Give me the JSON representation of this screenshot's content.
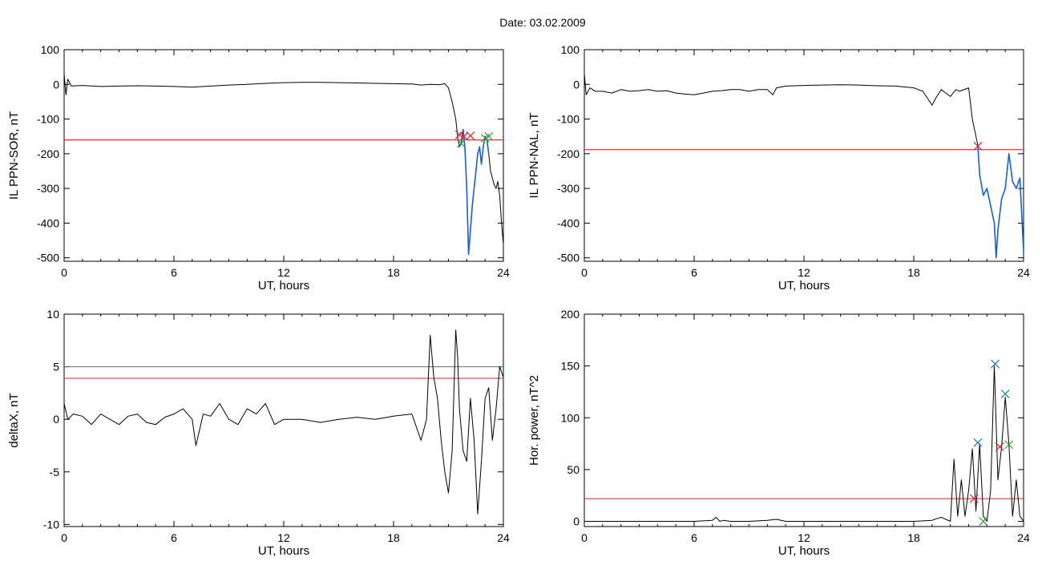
{
  "header": {
    "date_label": "Date:  03.02.2009"
  },
  "colors": {
    "trace": "#000000",
    "threshold": "#e8262b",
    "highlight": "#1a5fd6",
    "level2": "#1a8f8f",
    "marker_red": "#d62728",
    "marker_green": "#2ca02c",
    "marker_blue": "#1f77b4"
  },
  "chart_data": [
    {
      "id": "sor",
      "type": "line",
      "title": "",
      "xlabel": "UT, hours",
      "ylabel": "IL PPN-SOR, nT",
      "xlim": [
        0,
        24
      ],
      "ylim": [
        -510,
        100
      ],
      "xticks": [
        0,
        6,
        12,
        18,
        24
      ],
      "yticks": [
        100,
        0,
        -100,
        -200,
        -300,
        -400,
        -500
      ],
      "threshold": -160,
      "series": [
        {
          "role": "main",
          "x": [
            0,
            0.1,
            0.2,
            0.4,
            1,
            2,
            3,
            4,
            5,
            6,
            7,
            8,
            9,
            10,
            11,
            12,
            13,
            14,
            15,
            16,
            17,
            18,
            19,
            19.5,
            20,
            20.5,
            20.8,
            21,
            21.2,
            21.4,
            21.5,
            21.6,
            21.7,
            21.8,
            21.9,
            22,
            22.1,
            22.2,
            22.3,
            22.4,
            22.5,
            22.6,
            22.7,
            22.8,
            22.9,
            23,
            23.1,
            23.2,
            23.3,
            23.4,
            23.5,
            23.6,
            23.7,
            23.8,
            23.9,
            24
          ],
          "y": [
            30,
            -30,
            15,
            -5,
            -3,
            -6,
            -5,
            -4,
            -5,
            -6,
            -8,
            -5,
            -2,
            0,
            3,
            5,
            6,
            6,
            5,
            4,
            3,
            2,
            1,
            -2,
            0,
            -1,
            2,
            -10,
            -50,
            -100,
            -150,
            -180,
            -170,
            -130,
            -180,
            -300,
            -490,
            -420,
            -350,
            -300,
            -250,
            -200,
            -180,
            -230,
            -180,
            -150,
            -160,
            -200,
            -250,
            -270,
            -290,
            -300,
            -280,
            -320,
            -400,
            -460
          ]
        },
        {
          "role": "highlight",
          "x": [
            21.5,
            21.6,
            21.7,
            21.8,
            21.9,
            22,
            22.1,
            22.2,
            22.3,
            22.4,
            22.5,
            22.6,
            22.7,
            22.8,
            22.9,
            23,
            23.1,
            23.2
          ],
          "y": [
            -150,
            -180,
            -170,
            -130,
            -180,
            -300,
            -490,
            -420,
            -350,
            -300,
            -250,
            -200,
            -180,
            -230,
            -180,
            -150,
            -160,
            -200
          ]
        }
      ],
      "markers": [
        {
          "x": 21.6,
          "y": -145,
          "color": "red"
        },
        {
          "x": 21.85,
          "y": -150,
          "color": "red"
        },
        {
          "x": 22.2,
          "y": -148,
          "color": "red"
        },
        {
          "x": 21.7,
          "y": -170,
          "color": "green"
        },
        {
          "x": 23.0,
          "y": -155,
          "color": "green"
        },
        {
          "x": 23.2,
          "y": -150,
          "color": "green"
        }
      ]
    },
    {
      "id": "nal",
      "type": "line",
      "title": "",
      "xlabel": "UT, hours",
      "ylabel": "IL PPN-NAL, nT",
      "xlim": [
        0,
        24
      ],
      "ylim": [
        -510,
        100
      ],
      "xticks": [
        0,
        6,
        12,
        18,
        24
      ],
      "yticks": [
        100,
        0,
        -100,
        -200,
        -300,
        -400,
        -500
      ],
      "threshold": -188,
      "series": [
        {
          "role": "main",
          "x": [
            0,
            0.1,
            0.3,
            0.6,
            1,
            1.5,
            2,
            2.5,
            3,
            3.5,
            4,
            4.5,
            5,
            5.5,
            6,
            6.5,
            7,
            7.5,
            8,
            8.5,
            9,
            9.5,
            10,
            10.3,
            10.5,
            11,
            12,
            13,
            14,
            15,
            16,
            17,
            18,
            18.5,
            19,
            19.2,
            19.5,
            20,
            20.3,
            20.5,
            21,
            21.2,
            21.4,
            21.5,
            21.6,
            21.8,
            22,
            22.2,
            22.4,
            22.5,
            22.6,
            22.8,
            23,
            23.2,
            23.4,
            23.6,
            23.8,
            24
          ],
          "y": [
            30,
            -30,
            -10,
            -20,
            -20,
            -25,
            -15,
            -20,
            -18,
            -15,
            -20,
            -18,
            -25,
            -28,
            -30,
            -25,
            -20,
            -18,
            -15,
            -15,
            -20,
            -15,
            -15,
            -30,
            -10,
            -5,
            -3,
            -2,
            -1,
            -2,
            -4,
            -5,
            -10,
            -20,
            -60,
            -40,
            -15,
            -35,
            -15,
            -20,
            -10,
            -100,
            -150,
            -175,
            -260,
            -320,
            -300,
            -350,
            -400,
            -500,
            -420,
            -330,
            -300,
            -200,
            -280,
            -300,
            -270,
            -480
          ]
        },
        {
          "role": "highlight",
          "x": [
            21.5,
            21.6,
            21.8,
            22,
            22.2,
            22.4,
            22.5,
            22.6,
            22.8,
            23,
            23.2,
            23.4,
            23.6,
            23.8,
            24
          ],
          "y": [
            -175,
            -260,
            -320,
            -300,
            -350,
            -400,
            -500,
            -420,
            -330,
            -300,
            -200,
            -280,
            -300,
            -270,
            -480
          ]
        }
      ],
      "markers": [
        {
          "x": 21.5,
          "y": -178,
          "color": "red"
        }
      ]
    },
    {
      "id": "deltax",
      "type": "line",
      "title": "",
      "xlabel": "UT, hours",
      "ylabel": "deltaX, nT",
      "xlim": [
        0,
        24
      ],
      "ylim": [
        -10.2,
        10
      ],
      "xticks": [
        0,
        6,
        12,
        18,
        24
      ],
      "yticks": [
        10,
        5,
        0,
        -5,
        -10
      ],
      "threshold": 3.9,
      "level2": 5.0,
      "series": [
        {
          "role": "main",
          "x": [
            0,
            0.2,
            0.5,
            1,
            1.5,
            2,
            2.5,
            3,
            3.5,
            4,
            4.5,
            5,
            5.5,
            6,
            6.5,
            7,
            7.2,
            7.4,
            7.6,
            8,
            8.5,
            9,
            9.5,
            10,
            10.5,
            11,
            11.5,
            12,
            13,
            14,
            15,
            16,
            17,
            18,
            19,
            19.5,
            19.8,
            20,
            20.2,
            20.4,
            20.6,
            20.8,
            21,
            21.2,
            21.4,
            21.5,
            21.6,
            21.8,
            22,
            22.2,
            22.4,
            22.6,
            22.8,
            23,
            23.2,
            23.4,
            23.6,
            23.8,
            24
          ],
          "y": [
            1.5,
            0,
            0.5,
            0.3,
            -0.5,
            0.5,
            0,
            -0.5,
            0.3,
            0.5,
            -0.3,
            -0.5,
            0.2,
            0.5,
            1,
            0,
            -2.5,
            -1,
            0.5,
            0.3,
            1.5,
            0,
            -0.5,
            1,
            0.5,
            1.5,
            -0.5,
            0,
            0,
            -0.3,
            0,
            0.2,
            0,
            0.3,
            0.5,
            -2,
            0,
            8,
            4,
            2,
            -2,
            -5,
            -7,
            -3,
            8.5,
            6,
            1,
            -3,
            -4,
            2,
            -2,
            -9,
            -4,
            2,
            3,
            -2,
            1,
            5,
            4
          ]
        }
      ],
      "markers": []
    },
    {
      "id": "hpower",
      "type": "line",
      "title": "",
      "xlabel": "UT, hours",
      "ylabel": "Hor. power, nT^2",
      "xlim": [
        0,
        24
      ],
      "ylim": [
        -5,
        200
      ],
      "xticks": [
        0,
        6,
        12,
        18,
        24
      ],
      "yticks": [
        200,
        150,
        100,
        50,
        0
      ],
      "threshold": 22,
      "series": [
        {
          "role": "main",
          "x": [
            0,
            1,
            2,
            3,
            4,
            5,
            6,
            7,
            7.2,
            7.4,
            7.6,
            8,
            9,
            10,
            10.5,
            11,
            12,
            13,
            14,
            15,
            16,
            17,
            18,
            19,
            19.5,
            20,
            20.2,
            20.4,
            20.6,
            20.8,
            21,
            21.2,
            21.4,
            21.6,
            21.8,
            22,
            22.2,
            22.4,
            22.6,
            22.8,
            23,
            23.2,
            23.4,
            23.6,
            23.8,
            24
          ],
          "y": [
            0,
            0,
            0,
            0,
            0,
            0,
            0,
            1,
            4,
            0,
            1,
            0,
            0,
            1,
            2,
            0,
            0,
            0,
            0,
            0,
            0,
            0,
            0,
            1,
            4,
            0,
            60,
            5,
            40,
            5,
            30,
            70,
            10,
            75,
            5,
            0,
            30,
            150,
            40,
            72,
            120,
            75,
            5,
            40,
            5,
            0
          ]
        }
      ],
      "markers": [
        {
          "x": 21.5,
          "y": 76,
          "color": "blue"
        },
        {
          "x": 22.45,
          "y": 152,
          "color": "blue"
        },
        {
          "x": 23.0,
          "y": 123,
          "color": "blue"
        },
        {
          "x": 22.7,
          "y": 72,
          "color": "red"
        },
        {
          "x": 21.3,
          "y": 22,
          "color": "red"
        },
        {
          "x": 23.2,
          "y": 74,
          "color": "green"
        },
        {
          "x": 21.8,
          "y": 0,
          "color": "green"
        }
      ]
    }
  ]
}
